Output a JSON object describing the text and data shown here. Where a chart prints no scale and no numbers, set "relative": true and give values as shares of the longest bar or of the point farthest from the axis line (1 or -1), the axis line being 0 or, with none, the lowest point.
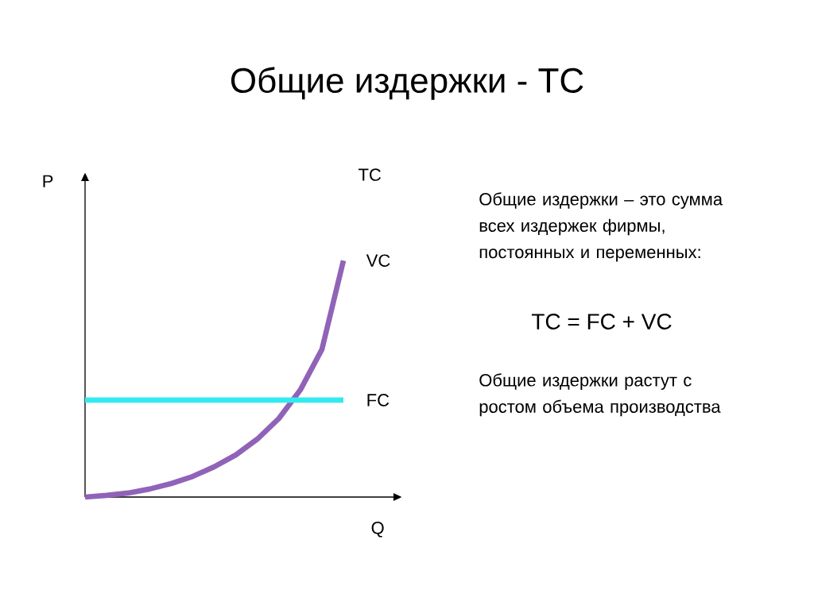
{
  "chart_data": {
    "type": "line",
    "title": "Общие издержки - TC",
    "xlabel": "Q",
    "ylabel": "P",
    "relative": true,
    "legend": false,
    "categories": [
      null,
      null,
      null,
      null,
      null,
      null,
      null,
      null,
      null,
      null,
      null,
      null,
      null
    ],
    "series": [
      {
        "name": "VC",
        "color": "#9063b8",
        "values": [
          0,
          0.007,
          0.017,
          0.034,
          0.057,
          0.087,
          0.128,
          0.178,
          0.245,
          0.332,
          0.453,
          0.624,
          1
        ]
      },
      {
        "name": "FC",
        "color": "#33eaf0",
        "values": [
          0.41,
          0.41,
          0.41,
          0.41,
          0.41,
          0.41,
          0.41,
          0.41,
          0.41,
          0.41,
          0.41,
          0.41,
          0.41
        ]
      }
    ],
    "annotations": [
      "TC",
      "Общие издержки – это сумма всех издержек фирмы, постоянных и переменных:",
      "TC = FC + VC",
      "Общие издержки  растут с ростом объема производства"
    ]
  }
}
